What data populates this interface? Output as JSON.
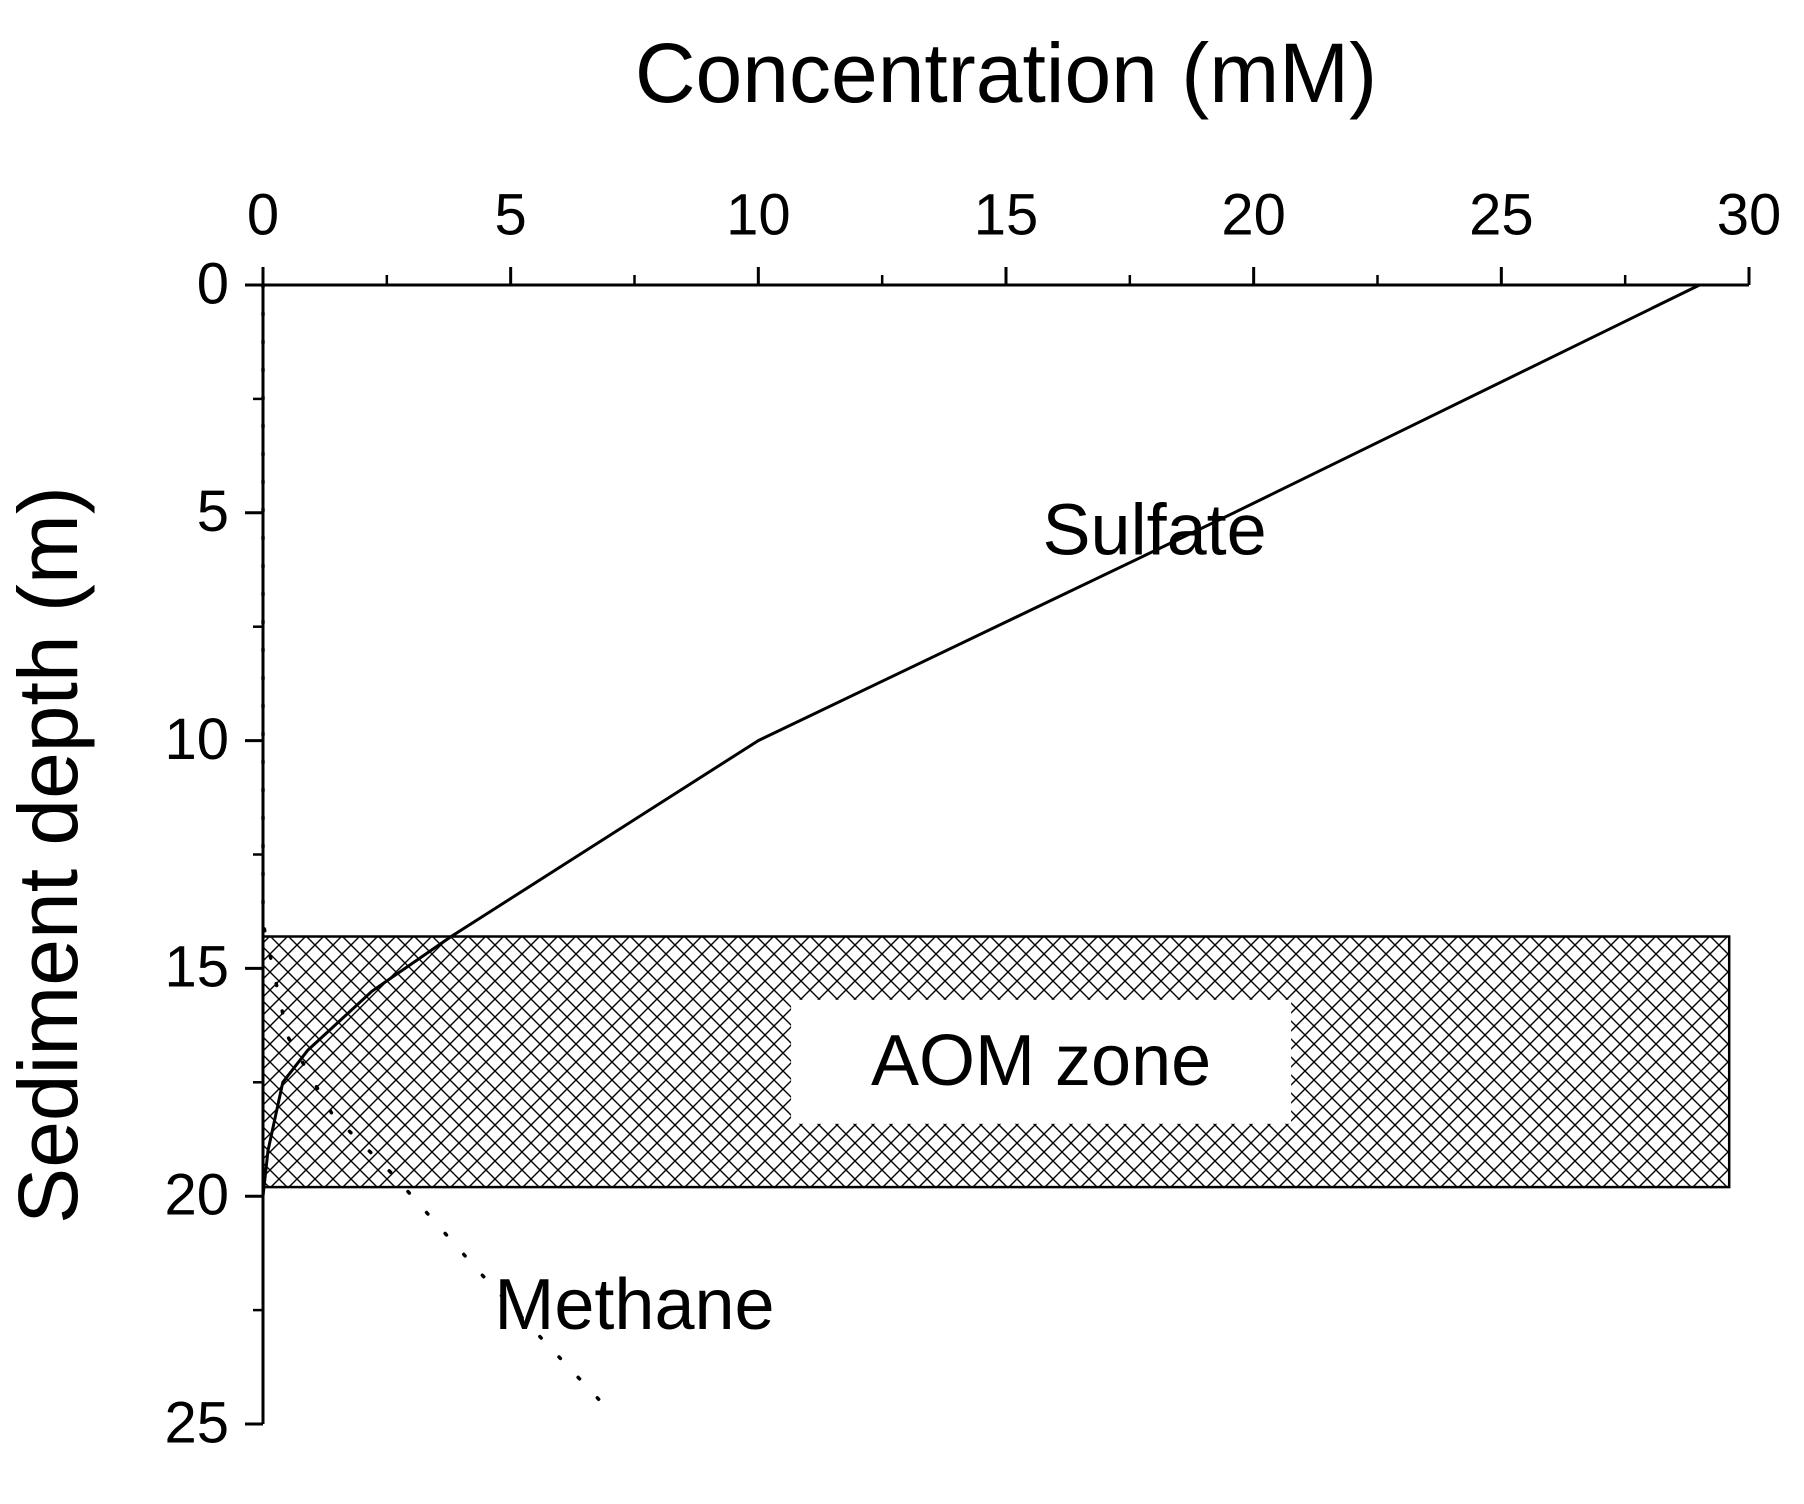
{
  "chart_data": {
    "type": "line",
    "x_label": "Concentration (mM)",
    "y_label": "Sediment depth (m)",
    "xlim": [
      0,
      30
    ],
    "xticks": [
      0,
      5,
      10,
      15,
      20,
      25,
      30
    ],
    "ylim": [
      0,
      25
    ],
    "yticks": [
      0,
      5,
      10,
      15,
      20,
      25
    ],
    "y_inverted": true,
    "x_axis_position": "top",
    "series": [
      {
        "name": "Sulfate",
        "color": "#000000",
        "style": "solid",
        "x": [
          29,
          19.6,
          10,
          3.8,
          2.2,
          0.9,
          0.4,
          0.1,
          0,
          0
        ],
        "y": [
          0,
          5,
          10,
          14.3,
          15.5,
          16.8,
          17.5,
          19,
          20,
          25
        ]
      },
      {
        "name": "Methane",
        "color": "#000000",
        "style": "dotted",
        "x": [
          0,
          0,
          0.5,
          1.4,
          2.6,
          4.4,
          6.9
        ],
        "y": [
          0,
          14,
          16.5,
          18.2,
          19.5,
          21.7,
          24.6
        ]
      }
    ],
    "zones": [
      {
        "label": "AOM zone",
        "xlim": [
          0,
          29.6
        ],
        "ylim": [
          14.3,
          19.8
        ]
      }
    ]
  }
}
